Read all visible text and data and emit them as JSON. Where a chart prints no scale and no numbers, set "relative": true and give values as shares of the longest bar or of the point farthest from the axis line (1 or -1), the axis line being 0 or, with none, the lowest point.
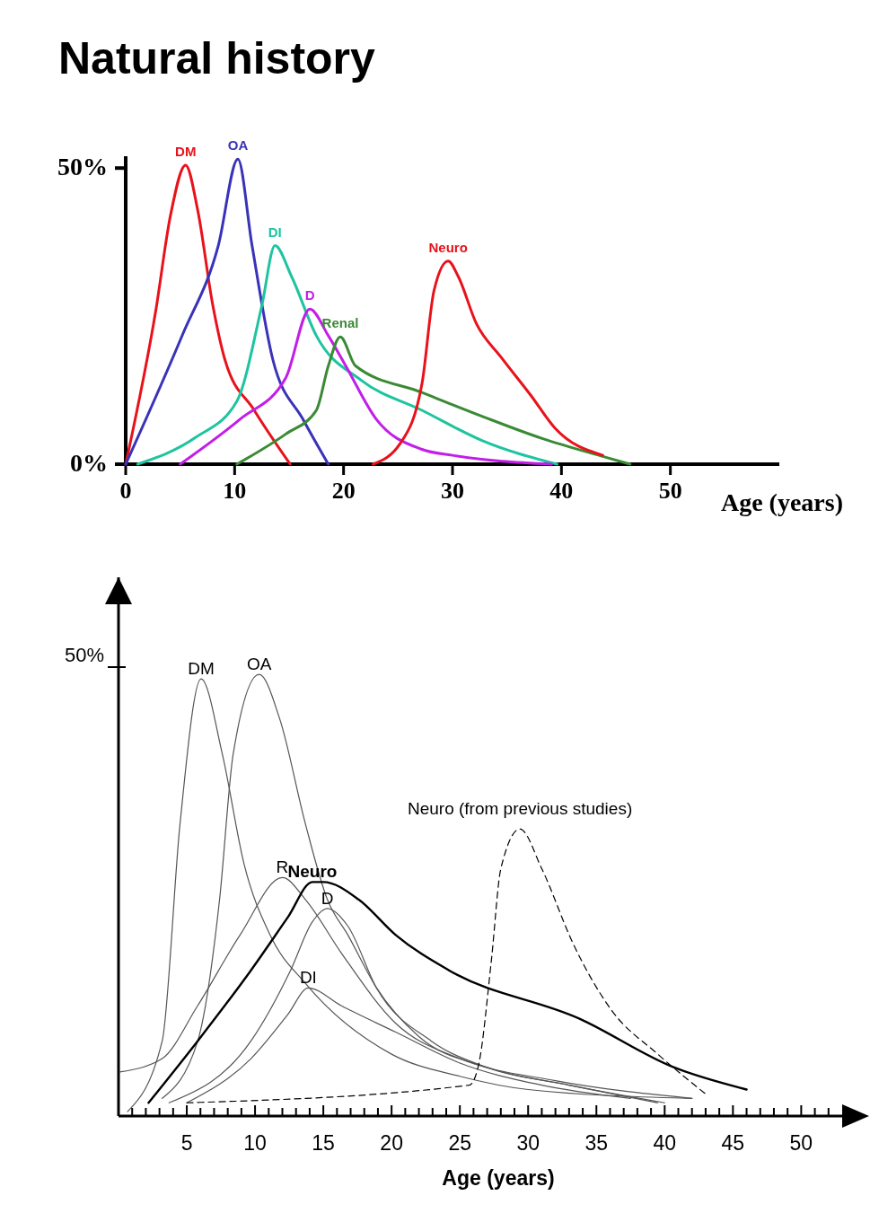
{
  "chart_data": [
    {
      "type": "line",
      "title": "Natural history",
      "xlabel": "Age (years)",
      "xlim": [
        0,
        60
      ],
      "ylim": [
        0,
        52
      ],
      "xticks": [
        0,
        10,
        20,
        30,
        40,
        50
      ],
      "yticks": [
        {
          "value": 0,
          "label": "0%"
        },
        {
          "value": 50,
          "label": "50%"
        }
      ],
      "series": [
        {
          "name": "DM",
          "color": "#e8121b",
          "x": [
            0,
            2.75,
            4.1,
            5.5,
            6.6,
            8,
            9.1,
            11.8,
            15.1
          ],
          "values": [
            0,
            25.8,
            41.9,
            50.5,
            43,
            26.8,
            17.7,
            9.1,
            0
          ]
        },
        {
          "name": "OA",
          "color": "#3a32b8",
          "x": [
            0,
            5.2,
            8.5,
            10.3,
            11.6,
            13.5,
            16.3,
            18.6
          ],
          "values": [
            0,
            21.8,
            36.9,
            51.5,
            36.9,
            17.7,
            7.5,
            0
          ]
        },
        {
          "name": "DI",
          "color": "#1ec4a0",
          "x": [
            1.1,
            6.4,
            10.2,
            12.5,
            13.7,
            15.2,
            17.5,
            21.6,
            27.2,
            32.7,
            39.6
          ],
          "values": [
            0,
            4.5,
            10.6,
            26.8,
            36.9,
            31.8,
            21.7,
            14.2,
            9.1,
            4,
            0
          ]
        },
        {
          "name": "D",
          "color": "#c21ee8",
          "x": [
            5,
            10.5,
            14.7,
            16.9,
            18.6,
            20.2,
            23,
            27.2,
            30,
            39.1
          ],
          "values": [
            0,
            7.6,
            14.6,
            26.2,
            21.7,
            16.6,
            7.6,
            2.5,
            1.5,
            0
          ]
        },
        {
          "name": "Renal",
          "color": "#3b8a35",
          "x": [
            10.2,
            14.7,
            17.5,
            18.6,
            19.7,
            21.1,
            27.2,
            32.7,
            38.3,
            43.8,
            46.3
          ],
          "values": [
            0,
            5.1,
            9.1,
            16.6,
            21.5,
            16.6,
            12.1,
            8.1,
            4.3,
            1.3,
            0
          ]
        },
        {
          "name": "Neuro",
          "color": "#e8121b",
          "x": [
            22.7,
            25.2,
            27.2,
            28.3,
            29.6,
            30.5,
            32.2,
            34.4,
            37.2,
            39.4,
            43.8
          ],
          "values": [
            0,
            3.5,
            13.6,
            29.3,
            34.3,
            31.8,
            23.7,
            18.2,
            11.6,
            6.1,
            1.5
          ]
        }
      ]
    },
    {
      "type": "line",
      "relative": true,
      "xlabel": "Age (years)",
      "xlim": [
        0,
        53
      ],
      "annotations": [
        "50%"
      ],
      "xticks": [
        {
          "value": 1,
          "label": null
        },
        {
          "value": 2,
          "label": null
        },
        {
          "value": 3,
          "label": null
        },
        {
          "value": 4,
          "label": null
        },
        5,
        {
          "value": 6,
          "label": null
        },
        {
          "value": 7,
          "label": null
        },
        {
          "value": 8,
          "label": null
        },
        {
          "value": 9,
          "label": null
        },
        10,
        {
          "value": 11,
          "label": null
        },
        {
          "value": 12,
          "label": null
        },
        {
          "value": 13,
          "label": null
        },
        {
          "value": 14,
          "label": null
        },
        15,
        {
          "value": 16,
          "label": null
        },
        {
          "value": 17,
          "label": null
        },
        {
          "value": 18,
          "label": null
        },
        {
          "value": 19,
          "label": null
        },
        20,
        {
          "value": 21,
          "label": null
        },
        {
          "value": 22,
          "label": null
        },
        {
          "value": 23,
          "label": null
        },
        {
          "value": 24,
          "label": null
        },
        25,
        {
          "value": 26,
          "label": null
        },
        {
          "value": 27,
          "label": null
        },
        {
          "value": 28,
          "label": null
        },
        {
          "value": 29,
          "label": null
        },
        30,
        {
          "value": 31,
          "label": null
        },
        {
          "value": 32,
          "label": null
        },
        {
          "value": 33,
          "label": null
        },
        {
          "value": 34,
          "label": null
        },
        35,
        {
          "value": 36,
          "label": null
        },
        {
          "value": 37,
          "label": null
        },
        {
          "value": 38,
          "label": null
        },
        {
          "value": 39,
          "label": null
        },
        40,
        {
          "value": 41,
          "label": null
        },
        {
          "value": 42,
          "label": null
        },
        {
          "value": 43,
          "label": null
        },
        {
          "value": 44,
          "label": null
        },
        45,
        {
          "value": 46,
          "label": null
        },
        {
          "value": 47,
          "label": null
        },
        {
          "value": 48,
          "label": null
        },
        {
          "value": 49,
          "label": null
        },
        50,
        {
          "value": 51,
          "label": null
        },
        {
          "value": 52,
          "label": null
        }
      ],
      "series": [
        {
          "name": "DM",
          "color": "#555555",
          "x": [
            0.66,
            3.2,
            4.5,
            6.05,
            7.6,
            9.2,
            11.1,
            13.7,
            20,
            25,
            30,
            42
          ],
          "values": [
            0.01,
            0.17,
            0.66,
            0.99,
            0.82,
            0.57,
            0.41,
            0.3,
            0.14,
            0.09,
            0.06,
            0.04
          ]
        },
        {
          "name": "OA",
          "color": "#555555",
          "x": [
            3.2,
            5.8,
            7.4,
            8.4,
            10.3,
            11.8,
            13.7,
            15.3,
            16.8,
            18.9,
            22,
            27,
            33,
            40
          ],
          "values": [
            0.04,
            0.17,
            0.49,
            0.82,
            1,
            0.9,
            0.66,
            0.49,
            0.41,
            0.29,
            0.18,
            0.11,
            0.07,
            0.03
          ]
        },
        {
          "name": "R",
          "color": "#555555",
          "x": [
            0.1,
            3.2,
            5.8,
            8.9,
            12,
            13.7,
            16.3,
            20.3,
            25,
            32,
            42
          ],
          "values": [
            0.1,
            0.13,
            0.25,
            0.41,
            0.54,
            0.49,
            0.37,
            0.21,
            0.13,
            0.08,
            0.04
          ]
        },
        {
          "name": "Neuro",
          "color": "#000000",
          "x": [
            2.2,
            5.8,
            9.7,
            12.4,
            14.2,
            15,
            17.6,
            20.3,
            24.2,
            33.8,
            40.7,
            46
          ],
          "values": [
            0.03,
            0.17,
            0.33,
            0.45,
            0.53,
            0.53,
            0.49,
            0.41,
            0.33,
            0.22,
            0.11,
            0.06
          ]
        },
        {
          "name": "D",
          "color": "#555555",
          "x": [
            3.7,
            9.7,
            12.6,
            14.2,
            15.3,
            16.8,
            18.9,
            22.9,
            27,
            33,
            39.5
          ],
          "values": [
            0.03,
            0.17,
            0.33,
            0.44,
            0.47,
            0.43,
            0.29,
            0.17,
            0.11,
            0.07,
            0.03
          ]
        },
        {
          "name": "DI",
          "color": "#555555",
          "x": [
            5,
            9.7,
            12.4,
            13.9,
            16.3,
            20.3,
            25,
            31,
            37.5
          ],
          "values": [
            0.03,
            0.13,
            0.23,
            0.29,
            0.25,
            0.19,
            0.12,
            0.07,
            0.04
          ]
        },
        {
          "name": "Neuro (from previous studies)",
          "color": "#000000",
          "line_style": "dashed",
          "x": [
            5,
            25.7,
            26.4,
            27.3,
            28,
            29.4,
            31,
            33.3,
            36.1,
            39.5,
            43
          ],
          "values": [
            0.03,
            0.07,
            0.12,
            0.35,
            0.56,
            0.65,
            0.56,
            0.39,
            0.24,
            0.14,
            0.05
          ]
        }
      ]
    }
  ]
}
